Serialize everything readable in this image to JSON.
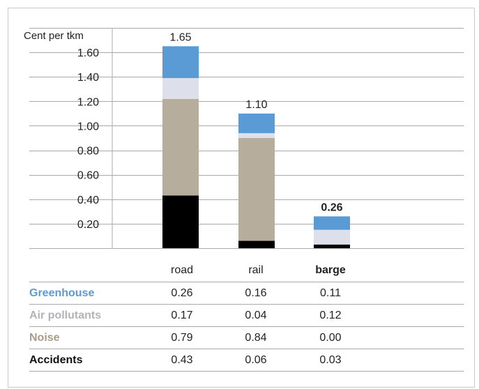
{
  "chart_data": {
    "type": "bar",
    "stacked": true,
    "ylabel": "Cent per tkm",
    "yticks": [
      "0.20",
      "0.40",
      "0.60",
      "0.80",
      "1.00",
      "1.20",
      "1.40",
      "1.60"
    ],
    "ylim": [
      0,
      1.8
    ],
    "categories": [
      "road",
      "rail",
      "barge"
    ],
    "highlight_category": "barge",
    "totals": [
      "1.65",
      "1.10",
      "0.26"
    ],
    "series": [
      {
        "name": "Accidents",
        "values": [
          0.43,
          0.06,
          0.03
        ],
        "color": "#000000"
      },
      {
        "name": "Noise",
        "values": [
          0.79,
          0.84,
          0.0
        ],
        "color": "#b7ad9c"
      },
      {
        "name": "Air pollutants",
        "values": [
          0.17,
          0.04,
          0.12
        ],
        "color": "#dde0ea"
      },
      {
        "name": "Greenhouse",
        "values": [
          0.26,
          0.16,
          0.11
        ],
        "color": "#5b9bd5"
      }
    ],
    "grid": true
  },
  "table": {
    "headers": [
      "road",
      "rail",
      "barge"
    ],
    "rows": [
      {
        "label": "Greenhouse",
        "color": "#5b9bd5",
        "values": [
          "0.26",
          "0.16",
          "0.11"
        ]
      },
      {
        "label": "Air pollutants",
        "color": "#b0b3b8",
        "values": [
          "0.17",
          "0.04",
          "0.12"
        ]
      },
      {
        "label": "Noise",
        "color": "#a89d88",
        "values": [
          "0.79",
          "0.84",
          "0.00"
        ]
      },
      {
        "label": "Accidents",
        "color": "#111111",
        "values": [
          "0.43",
          "0.06",
          "0.03"
        ]
      }
    ]
  }
}
